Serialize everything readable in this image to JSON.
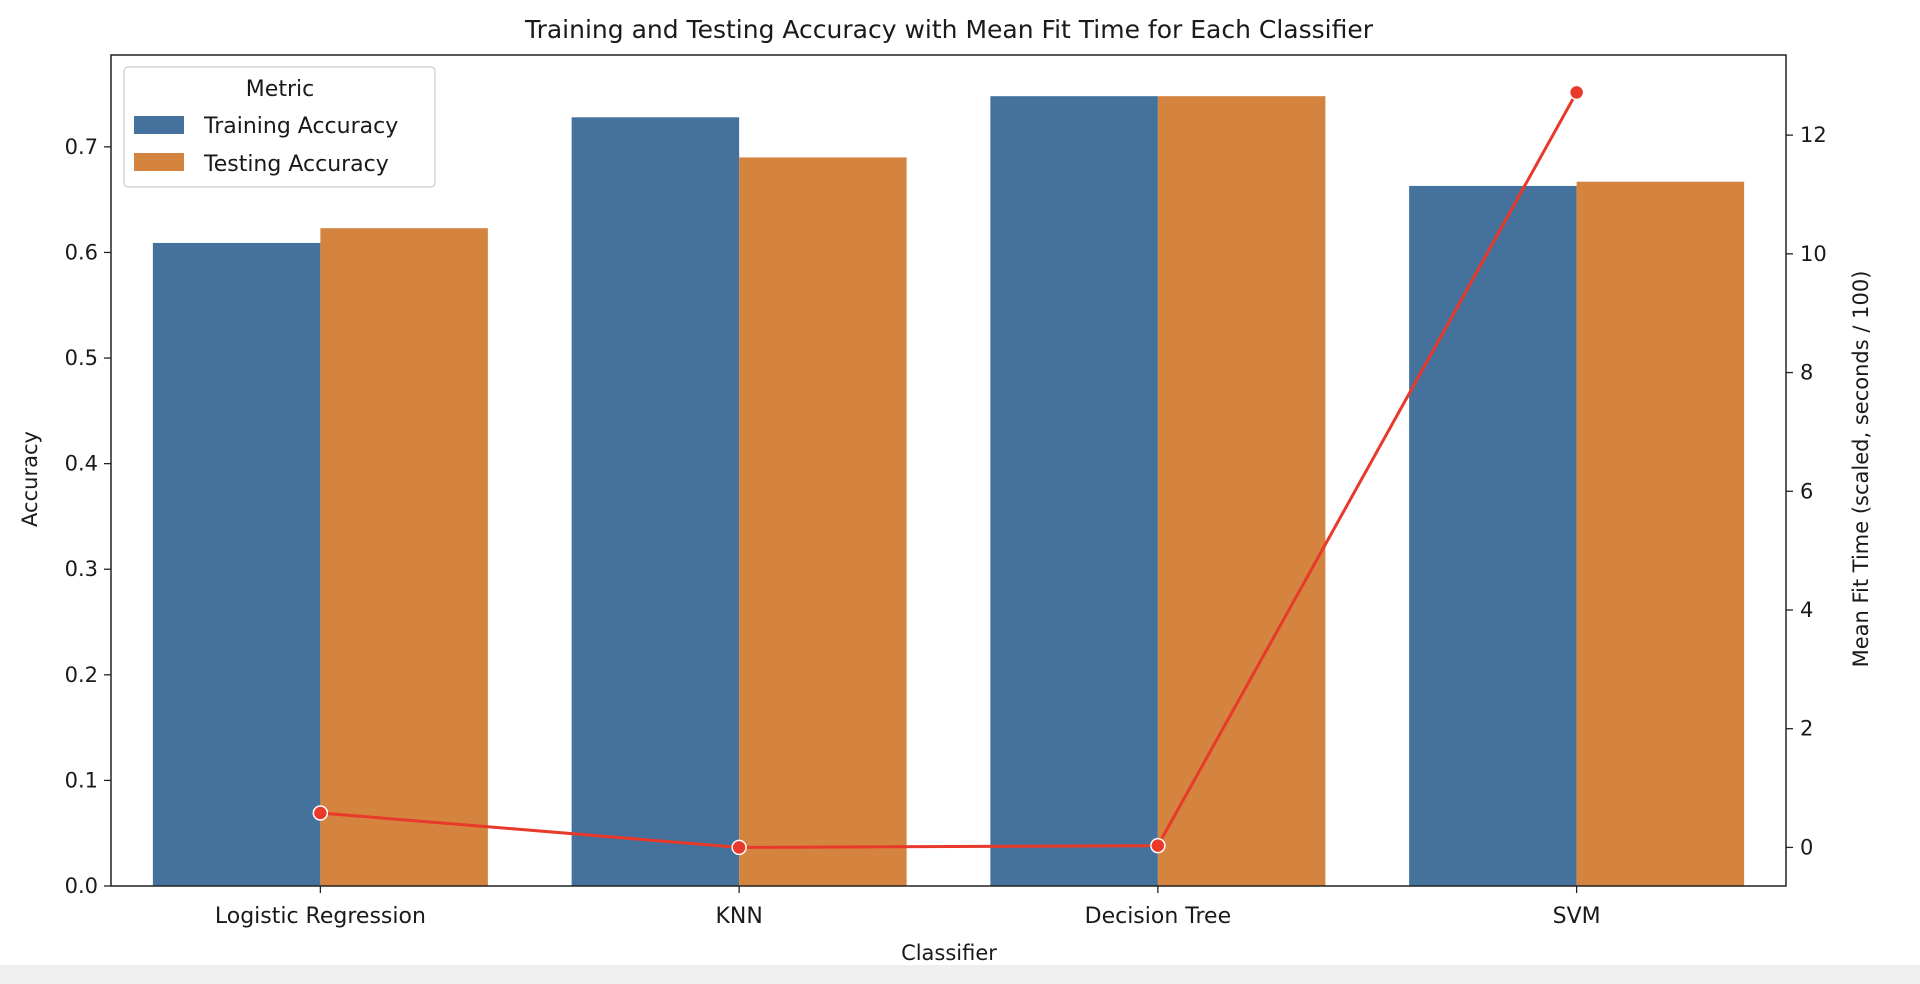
{
  "chart_data": {
    "type": "bar",
    "title": "Training and Testing Accuracy with Mean Fit Time for Each Classifier",
    "xlabel": "Classifier",
    "ylabel": "Accuracy",
    "y2label": "Mean Fit Time (scaled, seconds / 100)",
    "categories": [
      "Logistic Regression",
      "KNN",
      "Decision Tree",
      "SVM"
    ],
    "ylim": [
      0,
      0.787
    ],
    "y_ticks": [
      "0.0",
      "0.1",
      "0.2",
      "0.3",
      "0.4",
      "0.5",
      "0.6",
      "0.7"
    ],
    "y2lim": [
      -0.65,
      13.35
    ],
    "y2_ticks": [
      "0",
      "2",
      "4",
      "6",
      "8",
      "10",
      "12"
    ],
    "grid": false,
    "legend": {
      "title": "Metric",
      "placement": "top-left",
      "entries": [
        "Training Accuracy",
        "Testing Accuracy"
      ]
    },
    "series": [
      {
        "name": "Training Accuracy",
        "axis": "left",
        "kind": "bar",
        "color": "#44729d",
        "values": [
          0.609,
          0.728,
          0.748,
          0.663
        ]
      },
      {
        "name": "Testing Accuracy",
        "axis": "left",
        "kind": "bar",
        "color": "#d4843e",
        "values": [
          0.623,
          0.69,
          0.748,
          0.667
        ]
      },
      {
        "axis": "right",
        "kind": "line",
        "color": "#e8392b",
        "values": [
          0.58,
          0.0,
          0.03,
          12.72
        ]
      }
    ]
  }
}
